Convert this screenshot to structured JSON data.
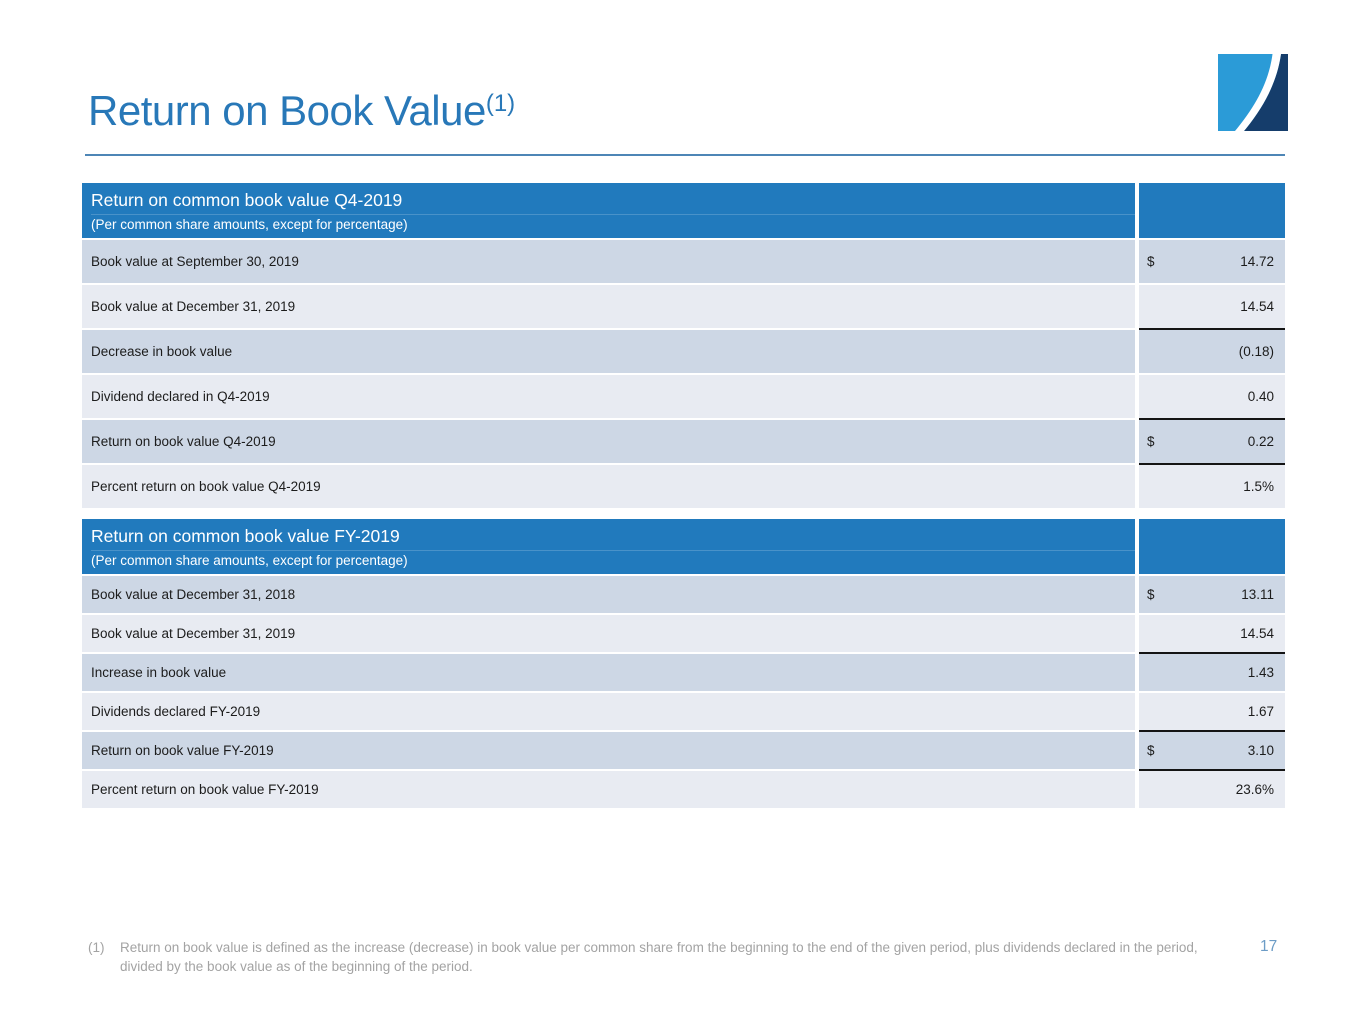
{
  "slide": {
    "title": "Return on Book Value",
    "title_superscript": "(1)",
    "page_number": "17",
    "footnote_marker": "(1)",
    "footnote_text": "Return on book value is defined as the increase (decrease) in book value per common share from the beginning to the end of the given period, plus dividends declared in the period, divided by the book value as of the beginning of the period."
  },
  "colors": {
    "accent_blue": "#2878b8",
    "rule_blue": "#4e86b6",
    "table_header_blue": "#217abd",
    "row_dark": "#cdd7e5",
    "row_light": "#e8ebf2",
    "footnote_gray": "#a3a3a3",
    "page_number_blue": "#6c9cc6",
    "logo_light_blue": "#2b9bd7",
    "logo_dark_blue": "#153d6b"
  },
  "tables": [
    {
      "title": "Return on common book value Q4-2019",
      "subtitle": "(Per common share amounts, except for percentage)",
      "rows": [
        {
          "label": "Book value at September 30, 2019",
          "currency": "$",
          "value": "14.72",
          "underline": false
        },
        {
          "label": "Book value at December 31, 2019",
          "currency": "",
          "value": "14.54",
          "underline": true
        },
        {
          "label": "Decrease in book value",
          "currency": "",
          "value": "(0.18)",
          "underline": false
        },
        {
          "label": "Dividend declared in Q4-2019",
          "currency": "",
          "value": "0.40",
          "underline": true
        },
        {
          "label": "Return on book value Q4-2019",
          "currency": "$",
          "value": "0.22",
          "underline": true
        },
        {
          "label": "Percent return on book value Q4-2019",
          "currency": "",
          "value": "1.5%",
          "underline": false
        }
      ]
    },
    {
      "title": "Return on common book value FY-2019",
      "subtitle": "(Per common share amounts, except for percentage)",
      "rows": [
        {
          "label": "Book value at December 31, 2018",
          "currency": "$",
          "value": "13.11",
          "underline": false
        },
        {
          "label": "Book value at December 31, 2019",
          "currency": "",
          "value": "14.54",
          "underline": true
        },
        {
          "label": "Increase in book value",
          "currency": "",
          "value": "1.43",
          "underline": false
        },
        {
          "label": "Dividends declared FY-2019",
          "currency": "",
          "value": "1.67",
          "underline": true
        },
        {
          "label": "Return on book value FY-2019",
          "currency": "$",
          "value": "3.10",
          "underline": true
        },
        {
          "label": "Percent return on book value FY-2019",
          "currency": "",
          "value": "23.6%",
          "underline": false
        }
      ]
    }
  ]
}
